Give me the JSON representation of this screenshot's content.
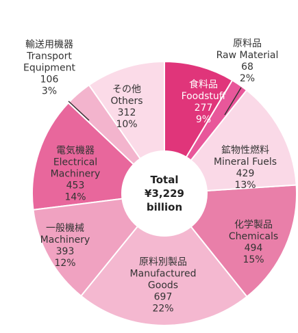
{
  "chart_data": {
    "type": "donut",
    "center_label": [
      "Total",
      "¥3,229",
      "billion"
    ],
    "names_ja": [
      "食料品",
      "原料品",
      "鉱物性燃料",
      "化学製品",
      "原料別製品",
      "一般機械",
      "電気機器",
      "輸送用機器",
      "その他"
    ],
    "categories": [
      "Foodstuff",
      "Raw Material",
      "Mineral Fuels",
      "Chemicals",
      "Manufactured Goods",
      "Machinery",
      "Electrical Machinery",
      "Transport Equipment",
      "Others"
    ],
    "values": [
      277,
      68,
      429,
      494,
      697,
      393,
      453,
      106,
      312
    ],
    "percent_labels": [
      "9%",
      "2%",
      "13%",
      "15%",
      "22%",
      "12%",
      "14%",
      "3%",
      "10%"
    ],
    "colors": [
      "#e0357a",
      "#e8579a",
      "#fad9e7",
      "#e97fa9",
      "#f4b8d0",
      "#f0a2c1",
      "#e8679c",
      "#f3b4cd",
      "#fbdbe8"
    ]
  }
}
